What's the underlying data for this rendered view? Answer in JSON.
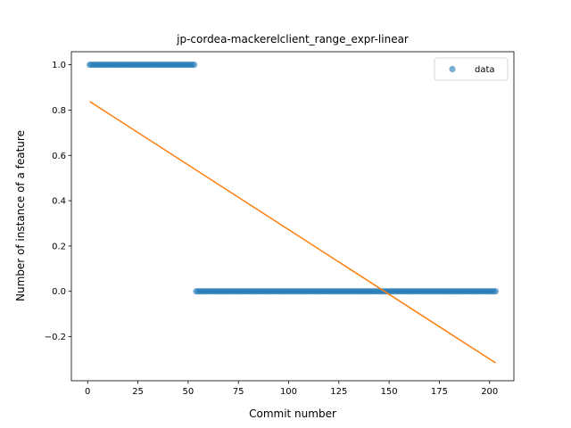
{
  "chart_data": {
    "type": "scatter",
    "title": "jp-cordea-mackerelclient_range_expr-linear",
    "xlabel": "Commit number",
    "ylabel": "Number of instance of a feature",
    "xlim": [
      -8.1,
      212.1
    ],
    "ylim": [
      -0.3945,
      1.0575
    ],
    "xticks": [
      0,
      25,
      50,
      75,
      100,
      125,
      150,
      175,
      200
    ],
    "yticks": [
      -0.2,
      0.0,
      0.2,
      0.4,
      0.6,
      0.8,
      1.0
    ],
    "xtick_labels": [
      "0",
      "25",
      "50",
      "75",
      "100",
      "125",
      "150",
      "175",
      "200"
    ],
    "ytick_labels": [
      "−0.2",
      "0.0",
      "0.2",
      "0.4",
      "0.6",
      "0.8",
      "1.0"
    ],
    "legend": {
      "position": "top-right",
      "entries": [
        "data"
      ]
    },
    "series": [
      {
        "name": "data",
        "kind": "scatter",
        "color": "#1f77b4",
        "segments": [
          {
            "x_start": 1,
            "x_end": 53,
            "y": 1.0
          },
          {
            "x_start": 54,
            "x_end": 203,
            "y": 0.0
          }
        ]
      },
      {
        "kind": "line",
        "color": "#ff7f0e",
        "x": [
          1,
          203
        ],
        "y": [
          0.838,
          -0.316
        ]
      }
    ]
  }
}
